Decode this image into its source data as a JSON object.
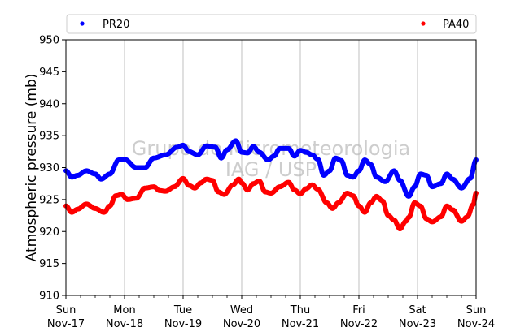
{
  "chart_data": {
    "type": "line",
    "ylabel": "Atmospheric pressure (mb)",
    "ylim": [
      910,
      950
    ],
    "yticks": [
      910,
      915,
      920,
      925,
      930,
      935,
      940,
      945,
      950
    ],
    "x_range_days": [
      0,
      7
    ],
    "x_ticks": [
      {
        "pos": 0,
        "day": "Sun",
        "date": "Nov-17"
      },
      {
        "pos": 1,
        "day": "Mon",
        "date": "Nov-18"
      },
      {
        "pos": 2,
        "day": "Tue",
        "date": "Nov-19"
      },
      {
        "pos": 3,
        "day": "Wed",
        "date": "Nov-20"
      },
      {
        "pos": 4,
        "day": "Thu",
        "date": "Nov-21"
      },
      {
        "pos": 5,
        "day": "Fri",
        "date": "Nov-22"
      },
      {
        "pos": 6,
        "day": "Sat",
        "date": "Nov-23"
      },
      {
        "pos": 7,
        "day": "Sun",
        "date": "Nov-24"
      }
    ],
    "grid": "vertical",
    "legend": "top",
    "watermark": [
      "Grupo de Micrometeorologia",
      "IAG / USP"
    ],
    "series": [
      {
        "name": "PR20",
        "color": "#0000ff",
        "x": [
          0,
          0.1,
          0.2,
          0.35,
          0.5,
          0.6,
          0.75,
          0.9,
          1.0,
          1.2,
          1.35,
          1.5,
          1.7,
          1.9,
          2.0,
          2.1,
          2.25,
          2.4,
          2.55,
          2.65,
          2.75,
          2.9,
          3.0,
          3.1,
          3.2,
          3.3,
          3.45,
          3.55,
          3.65,
          3.8,
          3.9,
          4.0,
          4.1,
          4.2,
          4.3,
          4.4,
          4.5,
          4.6,
          4.7,
          4.8,
          4.9,
          5.0,
          5.1,
          5.2,
          5.3,
          5.45,
          5.6,
          5.7,
          5.85,
          5.95,
          6.05,
          6.15,
          6.25,
          6.4,
          6.5,
          6.6,
          6.75,
          6.9,
          7.0
        ],
        "y": [
          929.5,
          928.5,
          928.8,
          929.5,
          929.0,
          928.2,
          929.0,
          931.2,
          931.3,
          930.0,
          930.0,
          931.5,
          932.0,
          933.2,
          933.5,
          932.5,
          932.0,
          933.4,
          933.2,
          931.5,
          932.8,
          934.2,
          932.4,
          932.3,
          933.3,
          932.4,
          931.2,
          931.8,
          933.0,
          933.0,
          931.8,
          932.7,
          932.4,
          932.0,
          931.3,
          928.8,
          929.5,
          931.5,
          931.1,
          928.8,
          928.5,
          929.5,
          931.2,
          930.5,
          928.5,
          927.8,
          929.5,
          928.0,
          925.5,
          927.0,
          929.0,
          928.8,
          927.0,
          927.5,
          929.0,
          928.2,
          926.8,
          928.3,
          931.2
        ]
      },
      {
        "name": "PA40",
        "color": "#ff0000",
        "x": [
          0,
          0.1,
          0.2,
          0.35,
          0.5,
          0.65,
          0.75,
          0.85,
          0.95,
          1.05,
          1.2,
          1.35,
          1.5,
          1.6,
          1.7,
          1.85,
          2.0,
          2.1,
          2.2,
          2.3,
          2.4,
          2.5,
          2.6,
          2.7,
          2.85,
          2.95,
          3.0,
          3.1,
          3.2,
          3.3,
          3.4,
          3.5,
          3.65,
          3.8,
          3.9,
          4.0,
          4.1,
          4.2,
          4.3,
          4.45,
          4.55,
          4.65,
          4.8,
          4.9,
          5.0,
          5.1,
          5.2,
          5.3,
          5.4,
          5.5,
          5.6,
          5.7,
          5.8,
          5.85,
          5.95,
          6.05,
          6.15,
          6.25,
          6.4,
          6.5,
          6.6,
          6.75,
          6.85,
          6.95,
          7.0
        ],
        "y": [
          924.0,
          923.0,
          923.5,
          924.3,
          923.6,
          923.0,
          924.0,
          925.6,
          925.8,
          925.0,
          925.2,
          926.8,
          927.0,
          926.4,
          926.3,
          927.0,
          928.3,
          927.2,
          926.8,
          927.6,
          928.2,
          928.0,
          926.2,
          925.8,
          927.3,
          928.2,
          927.6,
          926.5,
          927.5,
          927.9,
          926.2,
          926.0,
          927.0,
          927.7,
          926.5,
          925.9,
          926.7,
          927.3,
          926.6,
          924.5,
          923.6,
          924.5,
          926.0,
          925.6,
          924.0,
          923.0,
          924.5,
          925.5,
          924.8,
          922.5,
          921.8,
          920.4,
          921.6,
          922.2,
          924.5,
          924.0,
          922.0,
          921.5,
          922.3,
          924.0,
          923.4,
          921.6,
          922.3,
          924.2,
          926.0
        ]
      }
    ]
  }
}
